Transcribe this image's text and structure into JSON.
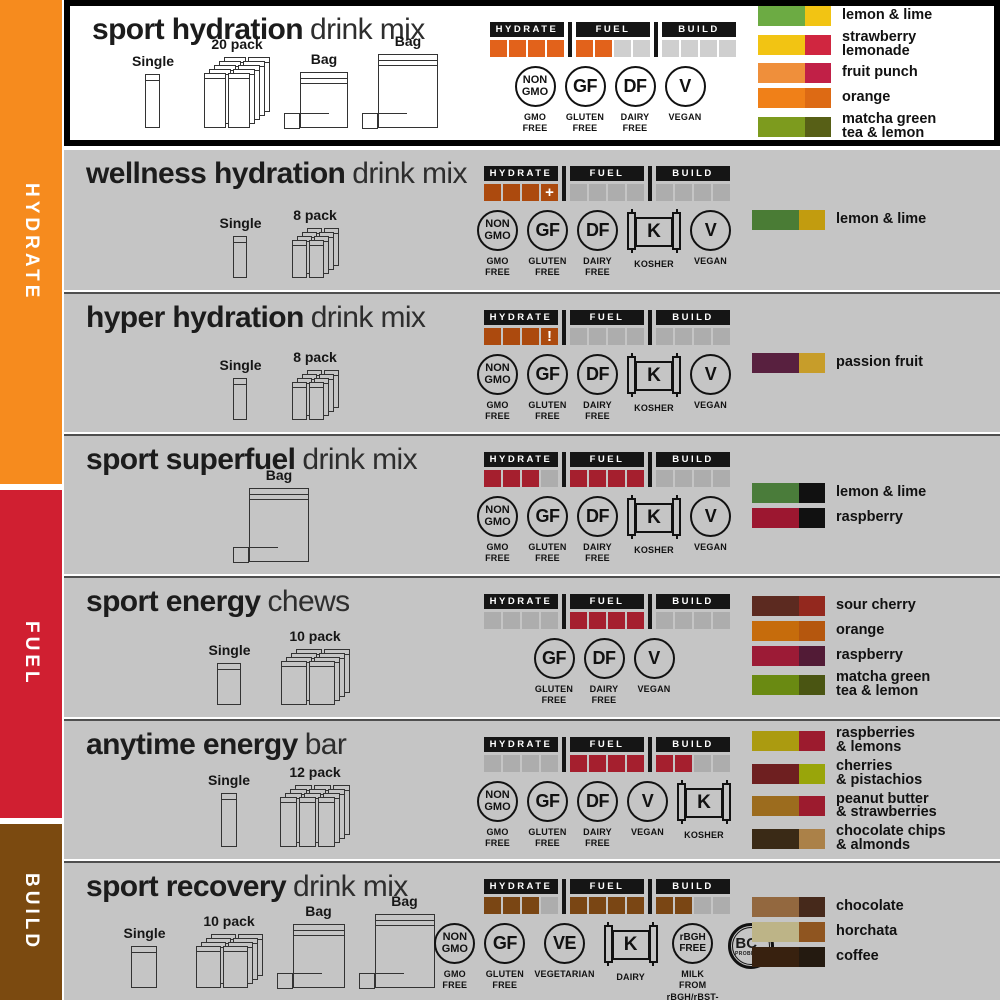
{
  "sidebar": {
    "sections": [
      {
        "id": "hydrate",
        "label": "HYDRATE",
        "color": "#f68b1e"
      },
      {
        "id": "fuel",
        "label": "FUEL",
        "color": "#d01f31"
      },
      {
        "id": "build",
        "label": "BUILD",
        "color": "#7b4a10"
      }
    ]
  },
  "meter_headers": [
    "HYDRATE",
    "FUEL",
    "BUILD"
  ],
  "rows": [
    {
      "id": "sport-hydration",
      "title_bold": "sport hydration",
      "title_light": "drink mix",
      "highlighted": true,
      "packages": [
        {
          "kind": "stick",
          "variant": "stick",
          "label": "Single"
        },
        {
          "kind": "stack",
          "variant": "stack20",
          "label": "20 pack"
        },
        {
          "kind": "bag",
          "variant": "bag-sm",
          "label": "Bag"
        },
        {
          "kind": "bag",
          "variant": "bag-lg",
          "label": "Bag"
        }
      ],
      "meter": {
        "on": "#e2621b",
        "off": "#cfcfcf",
        "cells": {
          "hydrate": [
            "on",
            "on",
            "on",
            "on"
          ],
          "fuel": [
            "on",
            "on",
            "off",
            "off"
          ],
          "build": [
            "off",
            "off",
            "off",
            "off"
          ]
        }
      },
      "badges": [
        {
          "kind": "circle",
          "text": "NON\nGMO",
          "multi": true,
          "label": "GMO\nFREE"
        },
        {
          "kind": "circle",
          "text": "GF",
          "multi": false,
          "label": "GLUTEN\nFREE"
        },
        {
          "kind": "circle",
          "text": "DF",
          "multi": false,
          "label": "DAIRY\nFREE"
        },
        {
          "kind": "circle",
          "text": "V",
          "multi": false,
          "label": "VEGAN"
        }
      ],
      "flavors": [
        {
          "name": "lemon & lime",
          "left": "#6cab43",
          "right": "#f2c413"
        },
        {
          "name": "strawberry\nlemonade",
          "left": "#f2c413",
          "right": "#d02640"
        },
        {
          "name": "fruit punch",
          "left": "#ef8f3b",
          "right": "#c12047"
        },
        {
          "name": "orange",
          "left": "#f08018",
          "right": "#dd6a14"
        },
        {
          "name": "matcha green\ntea & lemon",
          "left": "#7d9b1e",
          "right": "#575f16"
        }
      ]
    },
    {
      "id": "wellness-hydration",
      "title_bold": "wellness hydration",
      "title_light": "drink mix",
      "highlighted": false,
      "packages": [
        {
          "kind": "stick",
          "variant": "stick-sm",
          "label": "Single"
        },
        {
          "kind": "stack",
          "variant": "stack8",
          "label": "8 pack"
        }
      ],
      "meter": {
        "on": "#ac4a0e",
        "off": "#adadad",
        "cells": {
          "hydrate": [
            "on",
            "on",
            "on",
            "plus"
          ],
          "fuel": [
            "off",
            "off",
            "off",
            "off"
          ],
          "build": [
            "off",
            "off",
            "off",
            "off"
          ]
        }
      },
      "badges": [
        {
          "kind": "circle",
          "text": "NON\nGMO",
          "multi": true,
          "label": "GMO\nFREE"
        },
        {
          "kind": "circle",
          "text": "GF",
          "multi": false,
          "label": "GLUTEN\nFREE"
        },
        {
          "kind": "circle",
          "text": "DF",
          "multi": false,
          "label": "DAIRY\nFREE"
        },
        {
          "kind": "scroll",
          "text": "K",
          "label": "KOSHER"
        },
        {
          "kind": "circle",
          "text": "V",
          "multi": false,
          "label": "VEGAN"
        }
      ],
      "flavors": [
        {
          "name": "lemon & lime",
          "left": "#4a7c35",
          "right": "#c29c0f"
        }
      ]
    },
    {
      "id": "hyper-hydration",
      "title_bold": "hyper hydration",
      "title_light": "drink mix",
      "highlighted": false,
      "packages": [
        {
          "kind": "stick",
          "variant": "stick-sm",
          "label": "Single"
        },
        {
          "kind": "stack",
          "variant": "stack8",
          "label": "8 pack"
        }
      ],
      "meter": {
        "on": "#ac4a0e",
        "off": "#adadad",
        "cells": {
          "hydrate": [
            "on",
            "on",
            "on",
            "bang"
          ],
          "fuel": [
            "off",
            "off",
            "off",
            "off"
          ],
          "build": [
            "off",
            "off",
            "off",
            "off"
          ]
        }
      },
      "badges": [
        {
          "kind": "circle",
          "text": "NON\nGMO",
          "multi": true,
          "label": "GMO\nFREE"
        },
        {
          "kind": "circle",
          "text": "GF",
          "multi": false,
          "label": "GLUTEN\nFREE"
        },
        {
          "kind": "circle",
          "text": "DF",
          "multi": false,
          "label": "DAIRY\nFREE"
        },
        {
          "kind": "scroll",
          "text": "K",
          "label": "KOSHER"
        },
        {
          "kind": "circle",
          "text": "V",
          "multi": false,
          "label": "VEGAN"
        }
      ],
      "flavors": [
        {
          "name": "passion fruit",
          "left": "#58203f",
          "right": "#c79d2a"
        }
      ]
    },
    {
      "id": "sport-superfuel",
      "title_bold": "sport superfuel",
      "title_light": "drink mix",
      "highlighted": false,
      "packages": [
        {
          "kind": "bag",
          "variant": "bag-lg",
          "label": "Bag"
        }
      ],
      "meter": {
        "on": "#a51f2e",
        "off": "#adadad",
        "cells": {
          "hydrate": [
            "on",
            "on",
            "on",
            "off"
          ],
          "fuel": [
            "on",
            "on",
            "on",
            "on"
          ],
          "build": [
            "off",
            "off",
            "off",
            "off"
          ]
        }
      },
      "badges": [
        {
          "kind": "circle",
          "text": "NON\nGMO",
          "multi": true,
          "label": "GMO\nFREE"
        },
        {
          "kind": "circle",
          "text": "GF",
          "multi": false,
          "label": "GLUTEN\nFREE"
        },
        {
          "kind": "circle",
          "text": "DF",
          "multi": false,
          "label": "DAIRY\nFREE"
        },
        {
          "kind": "scroll",
          "text": "K",
          "label": "KOSHER"
        },
        {
          "kind": "circle",
          "text": "V",
          "multi": false,
          "label": "VEGAN"
        }
      ],
      "flavors": [
        {
          "name": "lemon & lime",
          "left": "#4a7c3a",
          "right": "#111111"
        },
        {
          "name": "raspberry",
          "left": "#9c1730",
          "right": "#111111"
        }
      ]
    },
    {
      "id": "sport-energy",
      "title_bold": "sport energy",
      "title_light": "chews",
      "highlighted": false,
      "packages": [
        {
          "kind": "stick",
          "variant": "packet",
          "label": "Single"
        },
        {
          "kind": "stack",
          "variant": "stack10",
          "label": "10 pack"
        }
      ],
      "meter": {
        "on": "#a51f2e",
        "off": "#adadad",
        "cells": {
          "hydrate": [
            "off",
            "off",
            "off",
            "off"
          ],
          "fuel": [
            "on",
            "on",
            "on",
            "on"
          ],
          "build": [
            "off",
            "off",
            "off",
            "off"
          ]
        }
      },
      "badges": [
        {
          "kind": "circle",
          "text": "GF",
          "multi": false,
          "label": "GLUTEN\nFREE"
        },
        {
          "kind": "circle",
          "text": "DF",
          "multi": false,
          "label": "DAIRY\nFREE"
        },
        {
          "kind": "circle",
          "text": "V",
          "multi": false,
          "label": "VEGAN"
        }
      ],
      "flavors": [
        {
          "name": "sour cherry",
          "left": "#5c2a20",
          "right": "#93281e"
        },
        {
          "name": "orange",
          "left": "#c66c0c",
          "right": "#b5570e"
        },
        {
          "name": "raspberry",
          "left": "#9c1b36",
          "right": "#521b36"
        },
        {
          "name": "matcha green\ntea & lemon",
          "left": "#6a8a12",
          "right": "#4a5512"
        }
      ]
    },
    {
      "id": "anytime-energy",
      "title_bold": "anytime energy",
      "title_light": "bar",
      "highlighted": false,
      "packages": [
        {
          "kind": "stick",
          "variant": "bar",
          "label": "Single"
        },
        {
          "kind": "stack",
          "variant": "stack12",
          "label": "12 pack"
        }
      ],
      "meter": {
        "on": "#a51f2e",
        "off": "#adadad",
        "cells": {
          "hydrate": [
            "off",
            "off",
            "off",
            "off"
          ],
          "fuel": [
            "on",
            "on",
            "on",
            "on"
          ],
          "build": [
            "on",
            "on",
            "off",
            "off"
          ]
        }
      },
      "badges": [
        {
          "kind": "circle",
          "text": "NON\nGMO",
          "multi": true,
          "label": "GMO\nFREE"
        },
        {
          "kind": "circle",
          "text": "GF",
          "multi": false,
          "label": "GLUTEN\nFREE"
        },
        {
          "kind": "circle",
          "text": "DF",
          "multi": false,
          "label": "DAIRY\nFREE"
        },
        {
          "kind": "circle",
          "text": "V",
          "multi": false,
          "label": "VEGAN"
        },
        {
          "kind": "scroll",
          "text": "K",
          "label": "KOSHER"
        }
      ],
      "flavors": [
        {
          "name": "raspberries\n& lemons",
          "left": "#ab9b10",
          "right": "#9c1b2e"
        },
        {
          "name": "cherries\n& pistachios",
          "left": "#6e1f20",
          "right": "#99a50a"
        },
        {
          "name": "peanut butter\n& strawberries",
          "left": "#9c6c1e",
          "right": "#9c1b2e"
        },
        {
          "name": "chocolate chips\n& almonds",
          "left": "#3a2a16",
          "right": "#ab8148"
        }
      ]
    },
    {
      "id": "sport-recovery",
      "title_bold": "sport recovery",
      "title_light": "drink mix",
      "highlighted": false,
      "packages": [
        {
          "kind": "stick",
          "variant": "packet-lg",
          "label": "Single"
        },
        {
          "kind": "stack",
          "variant": "stack10r",
          "label": "10 pack"
        },
        {
          "kind": "bag",
          "variant": "bag-md",
          "label": "Bag"
        },
        {
          "kind": "bag",
          "variant": "bag-lg",
          "label": "Bag"
        }
      ],
      "meter": {
        "on": "#7a4614",
        "off": "#adadad",
        "cells": {
          "hydrate": [
            "on",
            "on",
            "on",
            "off"
          ],
          "fuel": [
            "on",
            "on",
            "on",
            "on"
          ],
          "build": [
            "on",
            "on",
            "off",
            "off"
          ]
        }
      },
      "badges": [
        {
          "kind": "circle",
          "text": "NON\nGMO",
          "multi": true,
          "label": "GMO\nFREE"
        },
        {
          "kind": "circle",
          "text": "GF",
          "multi": false,
          "label": "GLUTEN\nFREE"
        },
        {
          "kind": "circle",
          "text": "VE",
          "multi": false,
          "label": "VEGETARIAN"
        },
        {
          "kind": "scroll",
          "text": "K",
          "label": "DAIRY"
        },
        {
          "kind": "circle",
          "text": "rBGH\nFREE",
          "multi": true,
          "tiny": true,
          "label": "MILK FROM\nrBGH/rBST-\nFREE COWS"
        },
        {
          "kind": "bc30",
          "text": "BC",
          "sup": "30",
          "sub": "PROBIOTIC",
          "label": ""
        }
      ],
      "flavors": [
        {
          "name": "chocolate",
          "left": "#93683f",
          "right": "#46291b"
        },
        {
          "name": "horchata",
          "left": "#bdb487",
          "right": "#8f5520"
        },
        {
          "name": "coffee",
          "left": "#38210f",
          "right": "#241a10"
        }
      ]
    }
  ]
}
